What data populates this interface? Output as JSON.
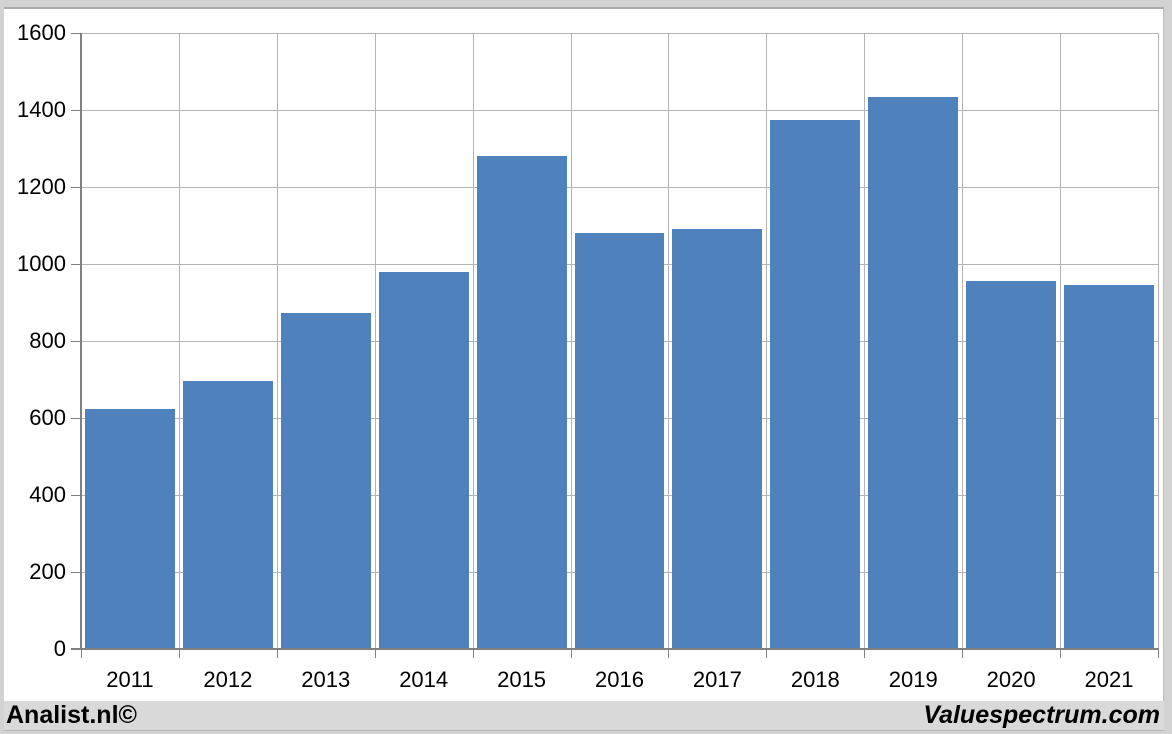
{
  "chart_data": {
    "type": "bar",
    "title": "",
    "categories": [
      "2011",
      "2012",
      "2013",
      "2014",
      "2015",
      "2016",
      "2017",
      "2018",
      "2019",
      "2020",
      "2021"
    ],
    "values": [
      623,
      696,
      873,
      980,
      1281,
      1080,
      1092,
      1374,
      1434,
      957,
      945
    ],
    "xlabel": "",
    "ylabel": "",
    "ylim": [
      0,
      1600
    ],
    "yticks": [
      0,
      200,
      400,
      600,
      800,
      1000,
      1200,
      1400,
      1600
    ],
    "grid": "horizontal-and-vertical",
    "legend": "none",
    "bar_color": "#4f81bd"
  },
  "footer": {
    "left_brand": "Analist.nl©",
    "right_brand": "Valuespectrum.com"
  },
  "colors": {
    "bar": "#4f81bd",
    "gridline": "#b4b4b4",
    "axis": "#808080",
    "frame": "#d2d2d2",
    "canvas": "#ffffff",
    "footer_bg": "#d9d9d9",
    "label_text": "#000000"
  }
}
